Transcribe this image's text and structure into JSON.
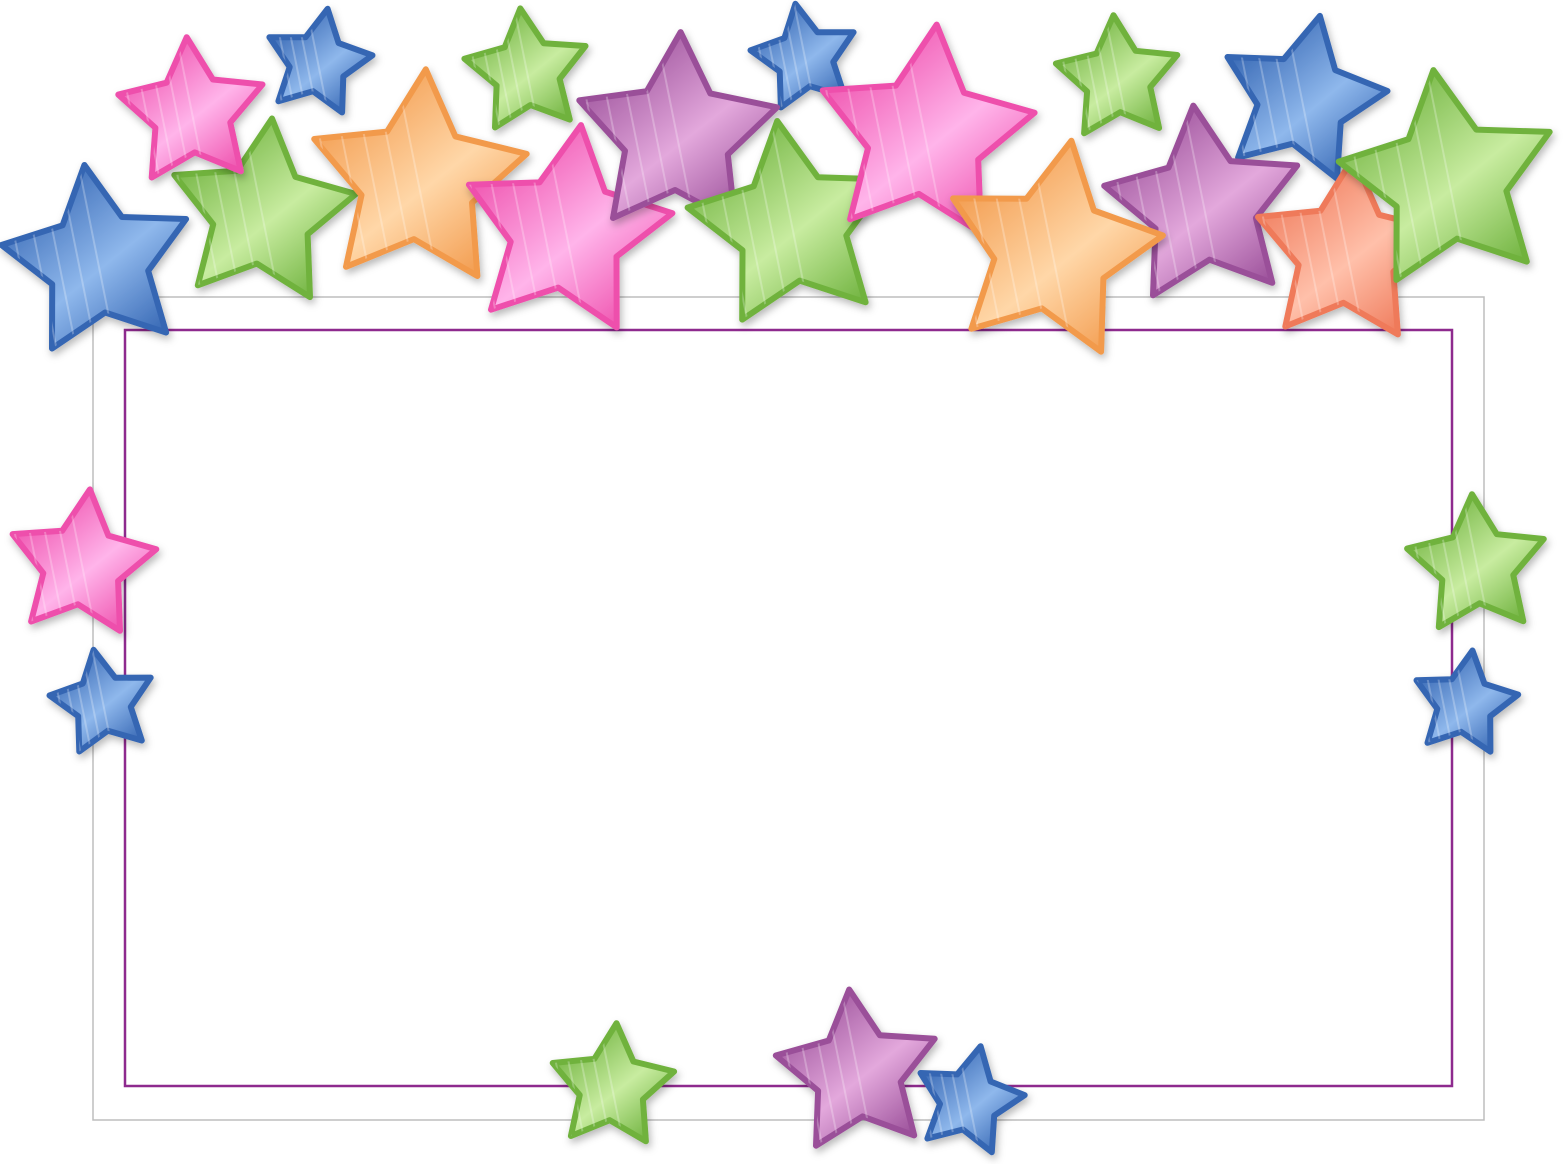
{
  "frame": {
    "outer_border_color": "#bdbdbd",
    "inner_border_color": "#8e2a8e",
    "fill_color": "#ffffff"
  },
  "palette": {
    "blue": {
      "light": "#8fb8ec",
      "dark": "#3566b3"
    },
    "pink": {
      "light": "#ffb4ea",
      "dark": "#ee4fac"
    },
    "green": {
      "light": "#c8eca0",
      "dark": "#6fb23e"
    },
    "orange": {
      "light": "#ffd7a8",
      "dark": "#f29a4c"
    },
    "purple": {
      "light": "#e3a8dc",
      "dark": "#9a4f99"
    },
    "coral": {
      "light": "#ffc0aa",
      "dark": "#ef7a5a"
    }
  },
  "stars": [
    {
      "name": "star-blue",
      "color": "blue"
    },
    {
      "name": "star-green",
      "color": "green"
    },
    {
      "name": "star-pink",
      "color": "pink"
    },
    {
      "name": "star-blue",
      "color": "blue"
    },
    {
      "name": "star-orange",
      "color": "orange"
    },
    {
      "name": "star-green",
      "color": "green"
    },
    {
      "name": "star-pink",
      "color": "pink"
    },
    {
      "name": "star-blue",
      "color": "blue"
    },
    {
      "name": "star-purple",
      "color": "purple"
    },
    {
      "name": "star-green",
      "color": "green"
    },
    {
      "name": "star-pink",
      "color": "pink"
    },
    {
      "name": "star-green",
      "color": "green"
    },
    {
      "name": "star-blue",
      "color": "blue"
    },
    {
      "name": "star-purple",
      "color": "purple"
    },
    {
      "name": "star-coral",
      "color": "coral"
    },
    {
      "name": "star-green",
      "color": "green"
    },
    {
      "name": "star-orange",
      "color": "orange"
    },
    {
      "name": "star-pink",
      "color": "pink"
    },
    {
      "name": "star-blue",
      "color": "blue"
    },
    {
      "name": "star-green",
      "color": "green"
    },
    {
      "name": "star-blue",
      "color": "blue"
    },
    {
      "name": "star-green",
      "color": "green"
    },
    {
      "name": "star-purple",
      "color": "purple"
    },
    {
      "name": "star-blue",
      "color": "blue"
    }
  ]
}
